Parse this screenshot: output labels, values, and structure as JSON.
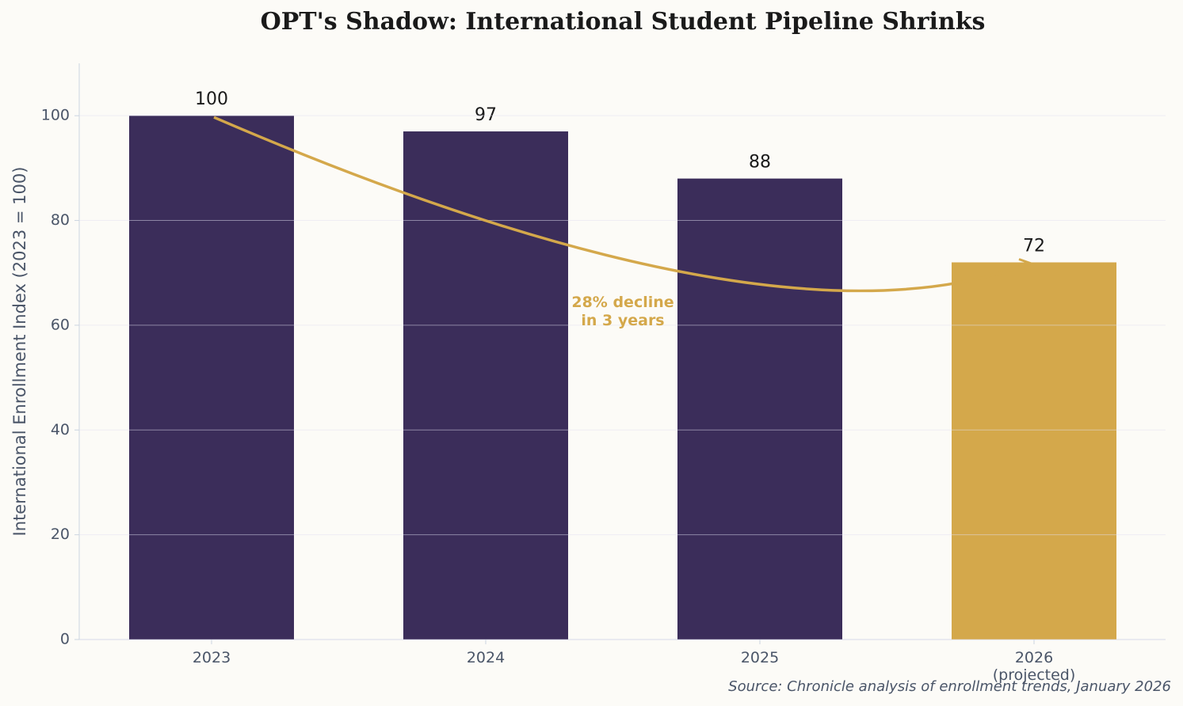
{
  "chart_data": {
    "type": "bar",
    "title": "OPT's Shadow: International Student Pipeline Shrinks",
    "y_label": "International Enrollment Index (2023 = 100)",
    "categories": [
      "2023",
      "2024",
      "2025",
      "2026\n(projected)"
    ],
    "values": [
      100,
      97,
      88,
      72
    ],
    "colors": [
      "#3b2d5a",
      "#3b2d5a",
      "#3b2d5a",
      "#d4a84b"
    ],
    "ylim": [
      0,
      110
    ],
    "yticks": [
      0,
      20,
      40,
      60,
      80,
      100
    ],
    "grid": true,
    "annotation": "28% decline\nin 3 years",
    "source": "Source: Chronicle analysis of enrollment trends, January 2026"
  }
}
